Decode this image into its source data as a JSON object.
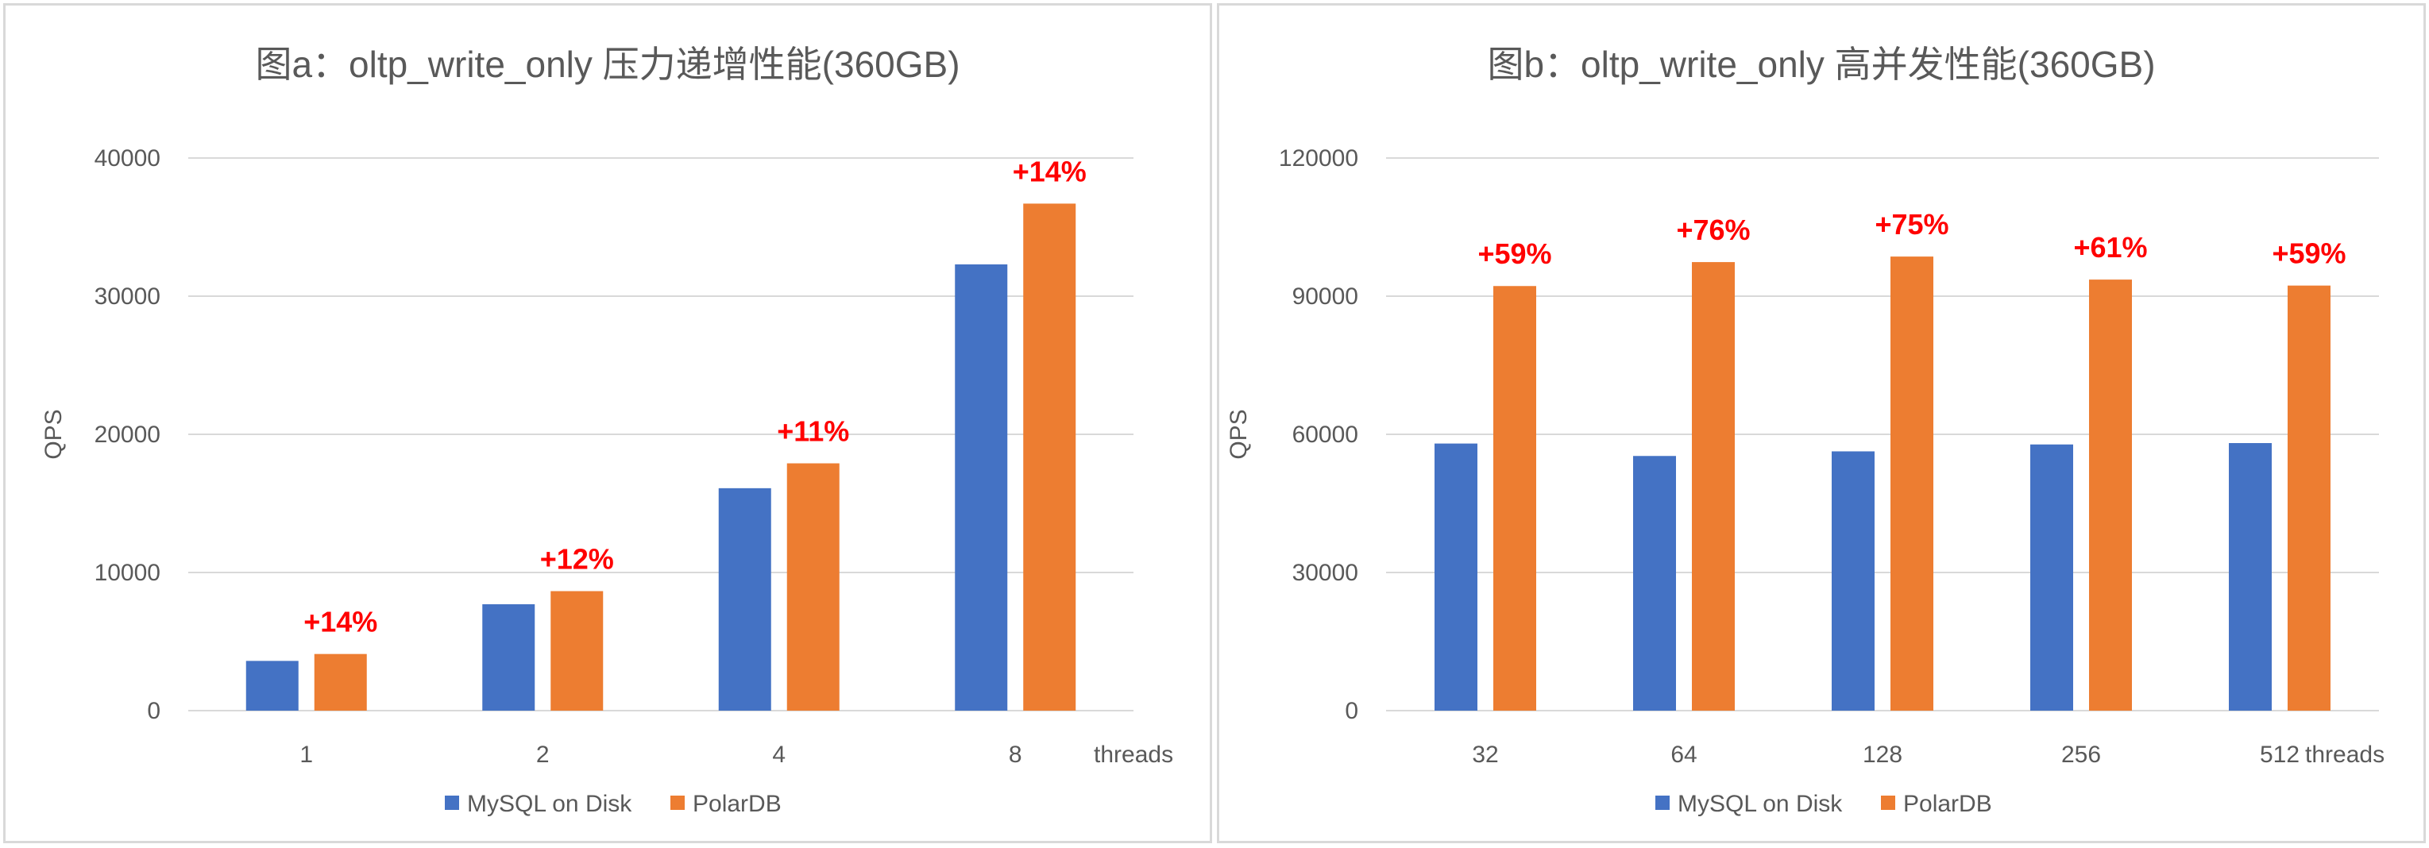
{
  "colors": {
    "mysql": "#4472c4",
    "polardb": "#ed7d31",
    "grid": "#d9d9d9",
    "text": "#595959",
    "highlight": "#ff0000"
  },
  "chart_data": [
    {
      "type": "bar",
      "title": "图a：oltp_write_only 压力递增性能(360GB)",
      "xlabel": "threads",
      "ylabel": "QPS",
      "ylim": [
        0,
        40000
      ],
      "yticks": [
        "0",
        "10000",
        "20000",
        "30000",
        "40000"
      ],
      "categories": [
        "1",
        "2",
        "4",
        "8"
      ],
      "series": [
        {
          "name": "MySQL on Disk",
          "values": [
            3600,
            7700,
            16100,
            32300
          ]
        },
        {
          "name": "PolarDB",
          "values": [
            4100,
            8650,
            17900,
            36700
          ]
        }
      ],
      "annotations": [
        "+14%",
        "+12%",
        "+11%",
        "+14%"
      ],
      "grid": true,
      "legend": "bottom"
    },
    {
      "type": "bar",
      "title": "图b：oltp_write_only 高并发性能(360GB)",
      "xlabel": "threads",
      "ylabel": "QPS",
      "ylim": [
        0,
        120000
      ],
      "yticks": [
        "0",
        "30000",
        "60000",
        "90000",
        "120000"
      ],
      "categories": [
        "32",
        "64",
        "128",
        "256",
        "512"
      ],
      "series": [
        {
          "name": "MySQL on Disk",
          "values": [
            58000,
            55300,
            56300,
            57800,
            58100
          ]
        },
        {
          "name": "PolarDB",
          "values": [
            92200,
            97400,
            98600,
            93600,
            92300
          ]
        }
      ],
      "annotations": [
        "+59%",
        "+76%",
        "+75%",
        "+61%",
        "+59%"
      ],
      "grid": true,
      "legend": "bottom"
    }
  ]
}
